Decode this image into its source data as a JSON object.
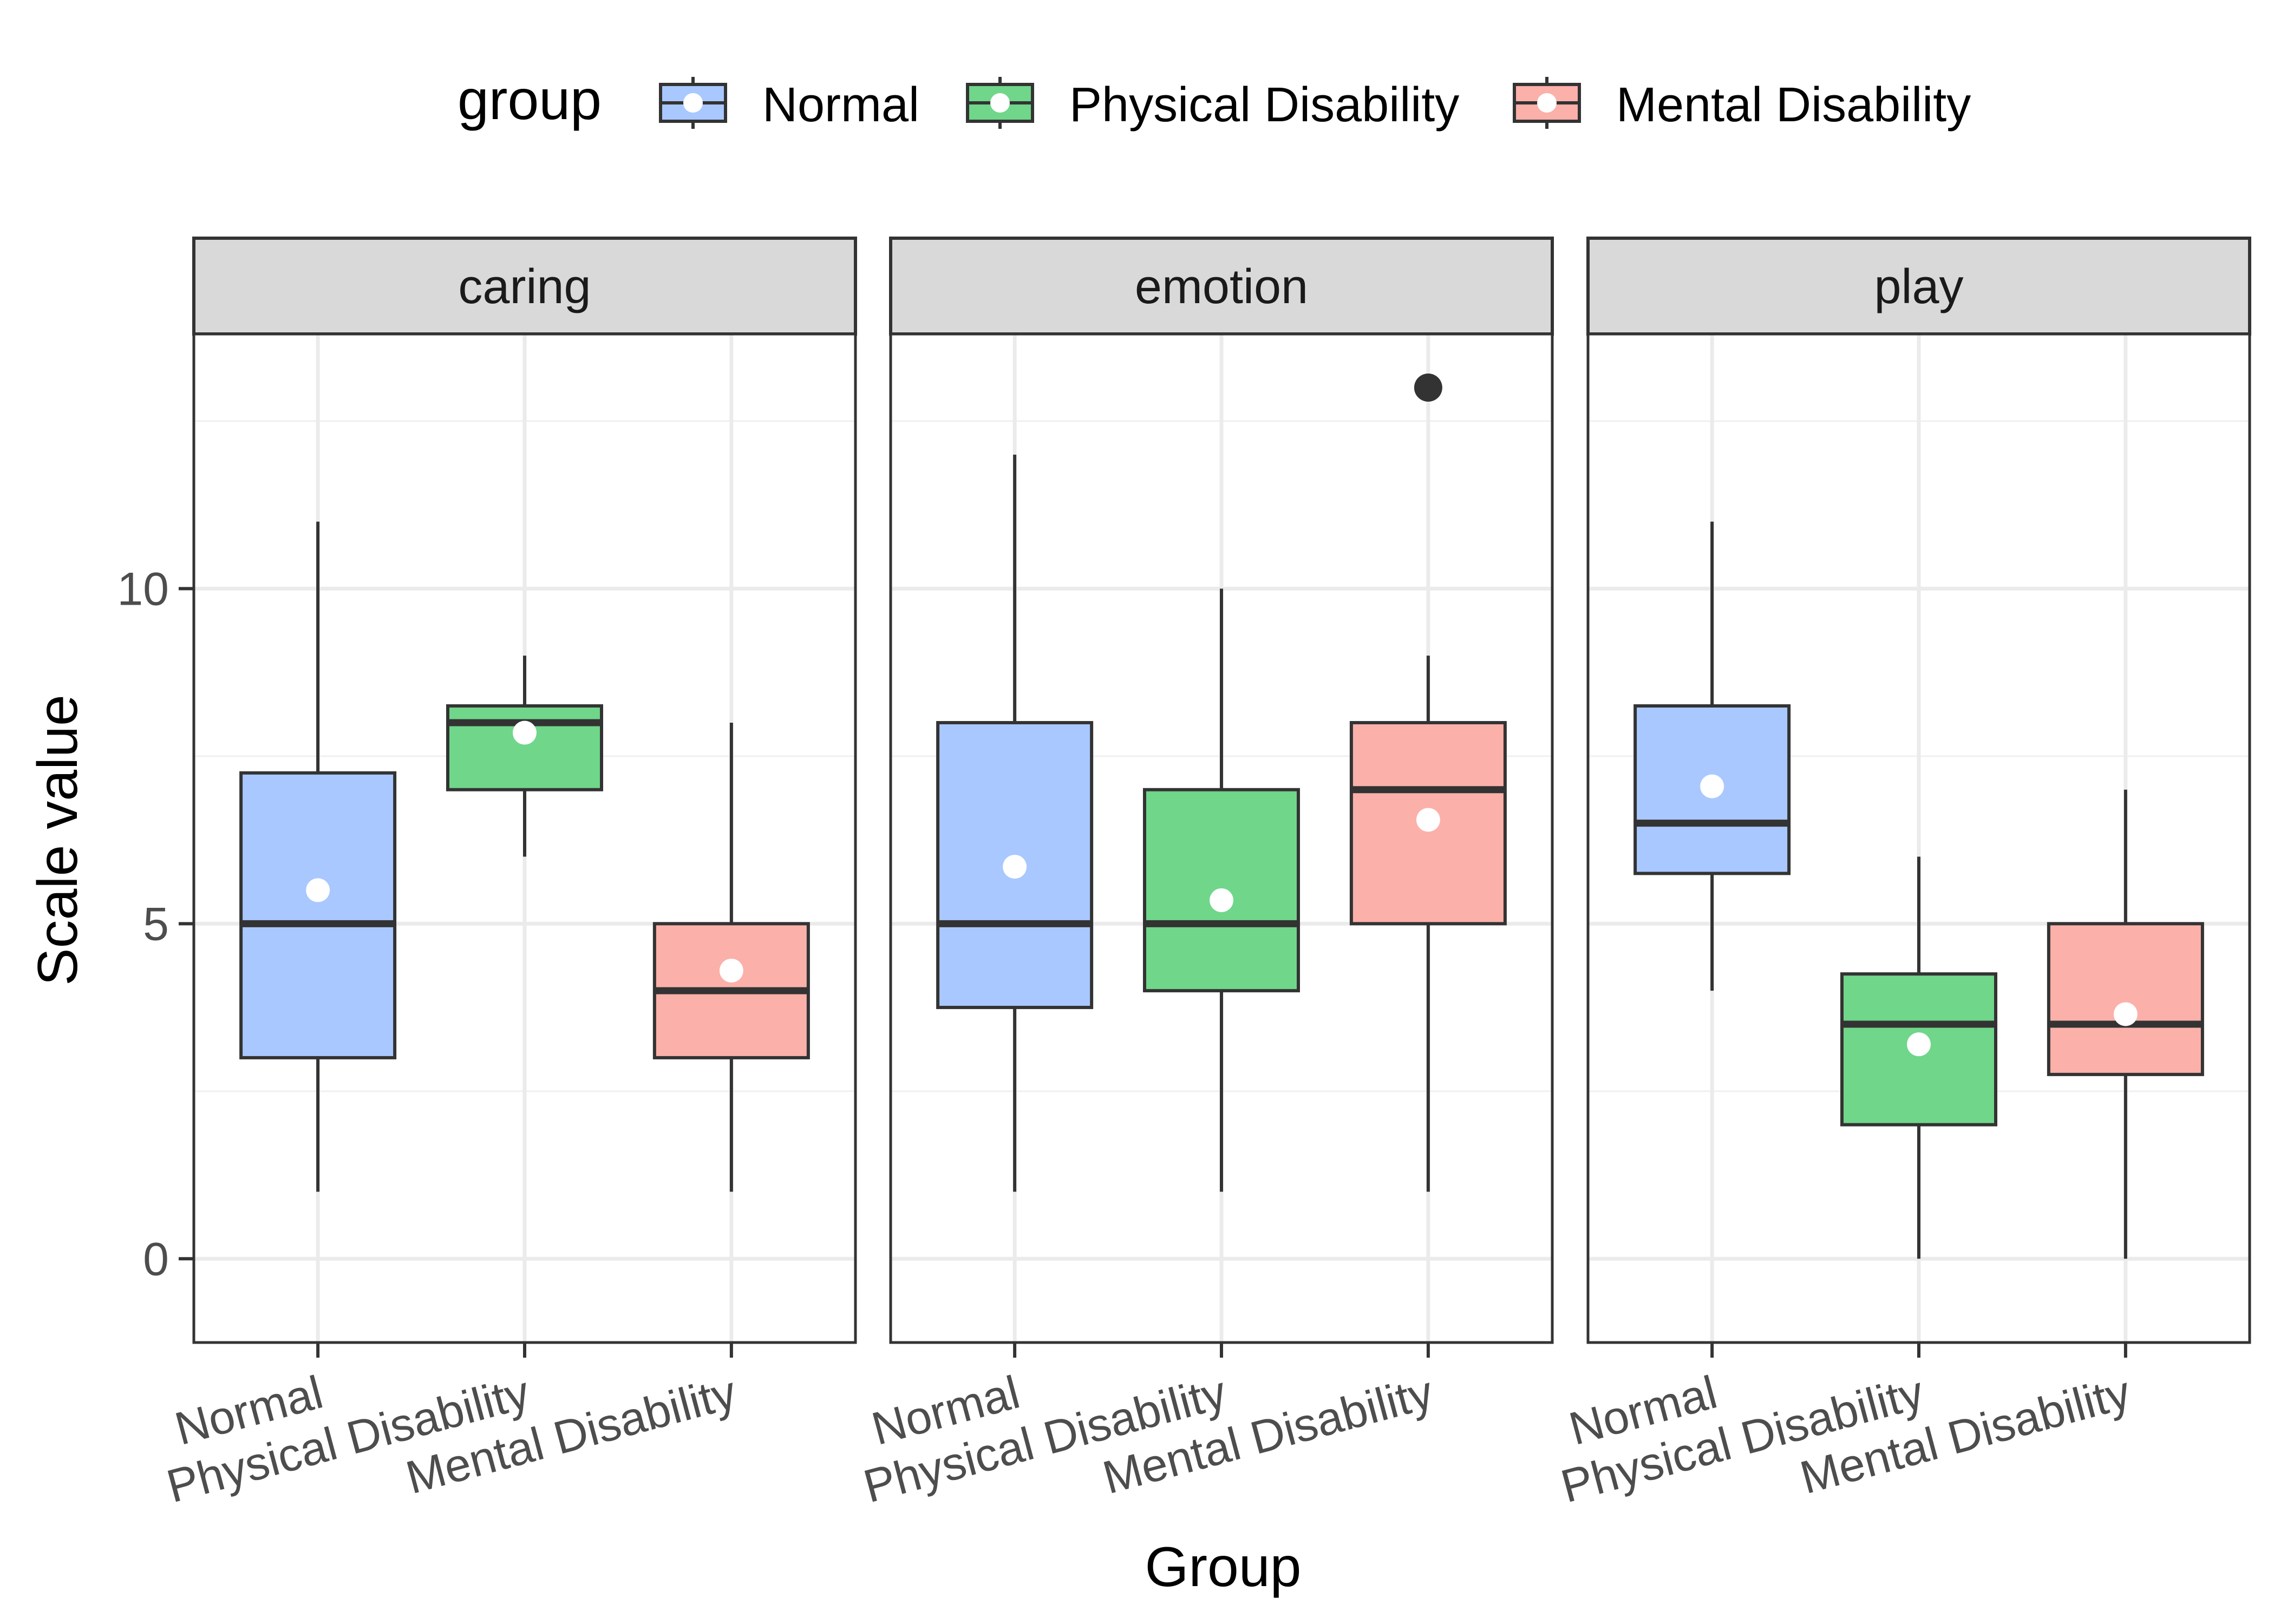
{
  "chart_data": {
    "type": "boxplot",
    "xlabel": "Group",
    "ylabel": "Scale value",
    "ylim": [
      -1.25,
      13.8
    ],
    "yticks": [
      0,
      5,
      10
    ],
    "grid": true,
    "legend": {
      "title": "group",
      "position": "top",
      "entries": [
        {
          "label": "Normal",
          "color": "#a9c8ff"
        },
        {
          "label": "Physical Disability",
          "color": "#6fd68a"
        },
        {
          "label": "Mental Disability",
          "color": "#fbb0aa"
        }
      ]
    },
    "categories": [
      "Normal",
      "Physical Disability",
      "Mental Disability"
    ],
    "panels": [
      {
        "facet": "caring",
        "boxes": [
          {
            "group": "Normal",
            "min": 1,
            "q1": 3,
            "median": 5,
            "q3": 7.25,
            "max": 11,
            "mean": 5.5,
            "outliers": []
          },
          {
            "group": "Physical Disability",
            "min": 6,
            "q1": 7,
            "median": 8,
            "q3": 8.25,
            "max": 9,
            "mean": 7.85,
            "outliers": []
          },
          {
            "group": "Mental Disability",
            "min": 1,
            "q1": 3,
            "median": 4,
            "q3": 5,
            "max": 8,
            "mean": 4.3,
            "outliers": []
          }
        ]
      },
      {
        "facet": "emotion",
        "boxes": [
          {
            "group": "Normal",
            "min": 1,
            "q1": 3.75,
            "median": 5,
            "q3": 8,
            "max": 12,
            "mean": 5.85,
            "outliers": []
          },
          {
            "group": "Physical Disability",
            "min": 1,
            "q1": 4,
            "median": 5,
            "q3": 7,
            "max": 10,
            "mean": 5.35,
            "outliers": []
          },
          {
            "group": "Mental Disability",
            "min": 1,
            "q1": 5,
            "median": 7,
            "q3": 8,
            "max": 9,
            "mean": 6.55,
            "outliers": [
              13
            ]
          }
        ]
      },
      {
        "facet": "play",
        "boxes": [
          {
            "group": "Normal",
            "min": 4,
            "q1": 5.75,
            "median": 6.5,
            "q3": 8.25,
            "max": 11,
            "mean": 7.05,
            "outliers": []
          },
          {
            "group": "Physical Disability",
            "min": 0,
            "q1": 2,
            "median": 3.5,
            "q3": 4.25,
            "max": 6,
            "mean": 3.2,
            "outliers": []
          },
          {
            "group": "Mental Disability",
            "min": 0,
            "q1": 2.75,
            "median": 3.5,
            "q3": 5,
            "max": 7,
            "mean": 3.65,
            "outliers": []
          }
        ]
      }
    ]
  }
}
